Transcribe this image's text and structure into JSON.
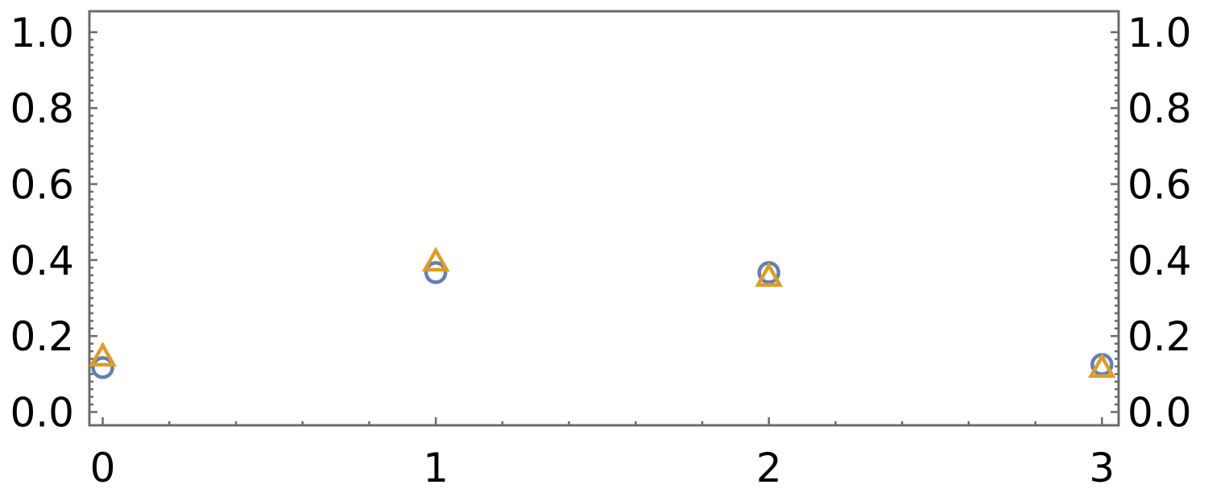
{
  "chart_data": {
    "type": "scatter",
    "x_ticks": [
      "0",
      "1",
      "2",
      "3"
    ],
    "y_ticks": [
      "0.0",
      "0.2",
      "0.4",
      "0.6",
      "0.8",
      "1.0"
    ],
    "xlim": [
      -0.04,
      3.05
    ],
    "ylim": [
      -0.035,
      1.055
    ],
    "series": [
      {
        "marker": "circle",
        "color": "#5e81b5",
        "points": [
          {
            "x": 0,
            "y": 0.117
          },
          {
            "x": 1,
            "y": 0.367
          },
          {
            "x": 2,
            "y": 0.367
          },
          {
            "x": 3,
            "y": 0.125
          }
        ]
      },
      {
        "marker": "triangle",
        "color": "#e19c24",
        "points": [
          {
            "x": 0,
            "y": 0.145
          },
          {
            "x": 1,
            "y": 0.395
          },
          {
            "x": 2,
            "y": 0.355
          },
          {
            "x": 3,
            "y": 0.115
          }
        ]
      }
    ],
    "grid": false,
    "mirror_y_axis": true
  }
}
